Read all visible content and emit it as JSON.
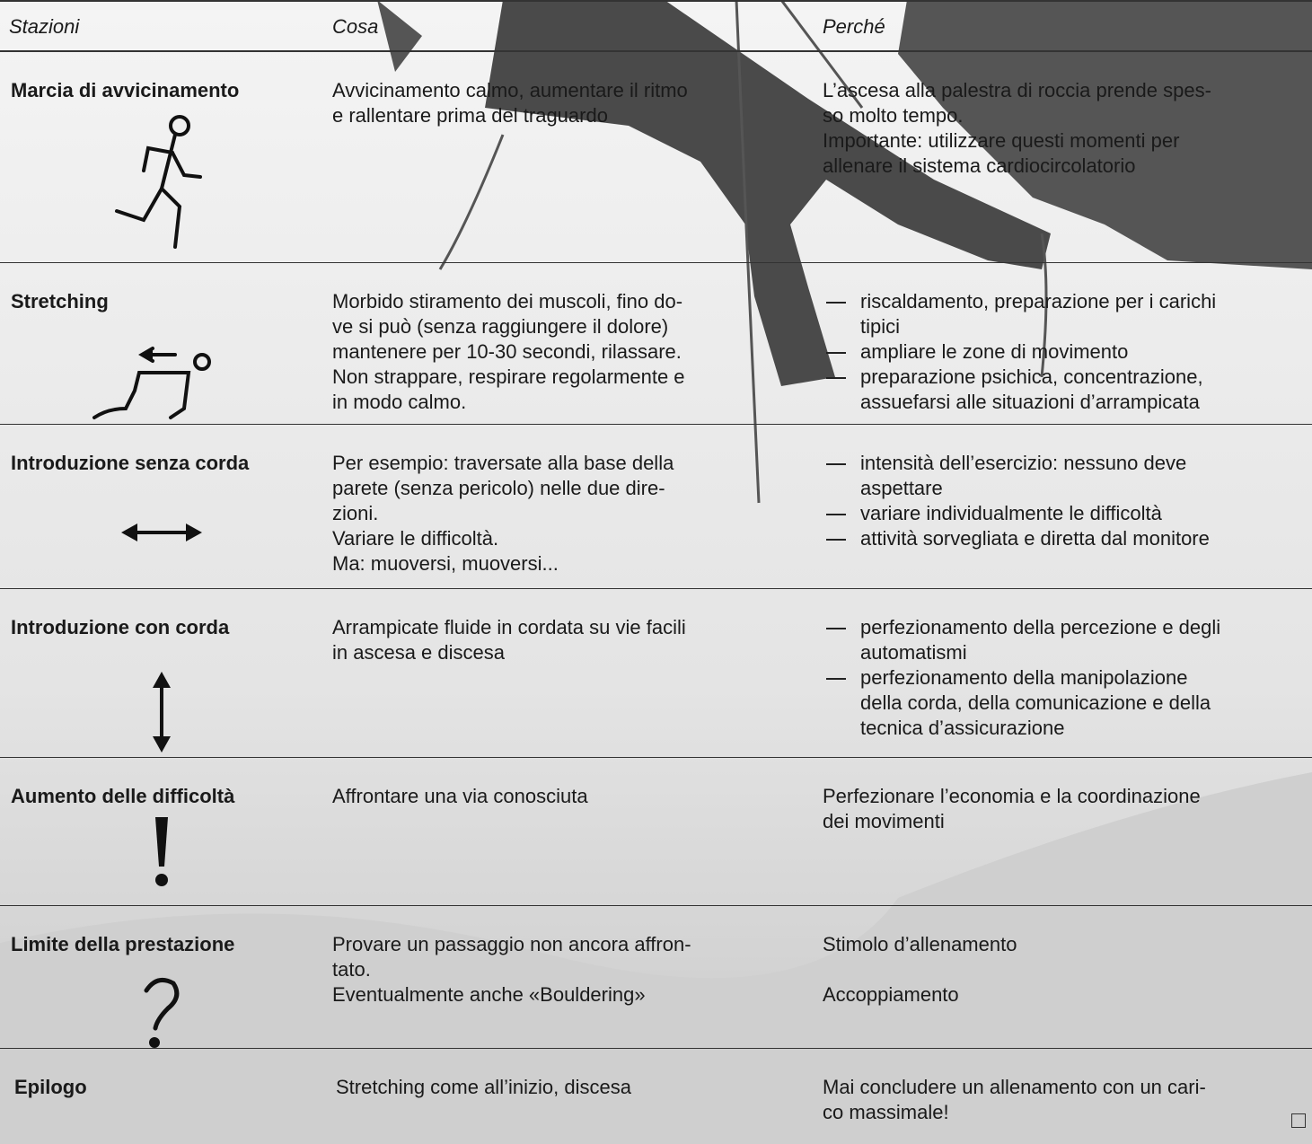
{
  "table": {
    "header": [
      "Stazioni",
      "Cosa",
      "Perché"
    ],
    "rows": [
      {
        "station": "Marcia di avvicinamento",
        "cosa": "Avvicinamento calmo, aumentare il ritmo\ne rallentare prima del traguardo",
        "perche": "L’ascesa alla palestra di roccia prende spes-\nso molto tempo.\nImportante: utilizzare questi momenti per\nallenare il sistema cardiocircolatorio"
      },
      {
        "station": "Stretching",
        "cosa": "Morbido stiramento dei muscoli, fino do-\nve si può (senza raggiungere il dolore)\nmantenere per 10-30 secondi, rilassare.\nNon strappare, respirare regolarmente e\nin modo calmo.",
        "perche": [
          "riscaldamento, preparazione per i carichi\ntipici",
          "ampliare le zone di movimento",
          "preparazione psichica, concentrazione,\nassuefarsi alle situazioni d’arrampicata"
        ]
      },
      {
        "station": "Introduzione senza corda",
        "cosa": "Per esempio: traversate alla base della\nparete (senza pericolo) nelle due dire-\nzioni.\nVariare le difficoltà.\nMa: muoversi, muoversi...",
        "perche": [
          "intensità dell’esercizio: nessuno deve\naspettare",
          "variare individualmente le difficoltà",
          "attività sorvegliata e diretta dal monitore"
        ]
      },
      {
        "station": "Introduzione con corda",
        "cosa": "Arrampicate fluide in cordata su vie facili\nin ascesa e discesa",
        "perche": [
          "perfezionamento della percezione e degli\nautomatismi",
          "perfezionamento della manipolazione\ndella corda, della comunicazione e della\ntecnica d’assicurazione"
        ]
      },
      {
        "station": "Aumento delle difficoltà",
        "cosa": "Affrontare una via conosciuta",
        "perche": "Perfezionare l’economia e la coordinazione\ndei movimenti"
      },
      {
        "station": "Limite della prestazione",
        "cosa": "Provare un passaggio non ancora affron-\ntato.\nEventualmente anche «Bouldering»",
        "perche": "Stimolo d’allenamento\n\nAccoppiamento"
      },
      {
        "station": "Epilogo",
        "cosa": "Stretching come all’inizio, discesa",
        "perche": "Mai concludere un allenamento con un cari-\nco massimale!"
      }
    ]
  }
}
